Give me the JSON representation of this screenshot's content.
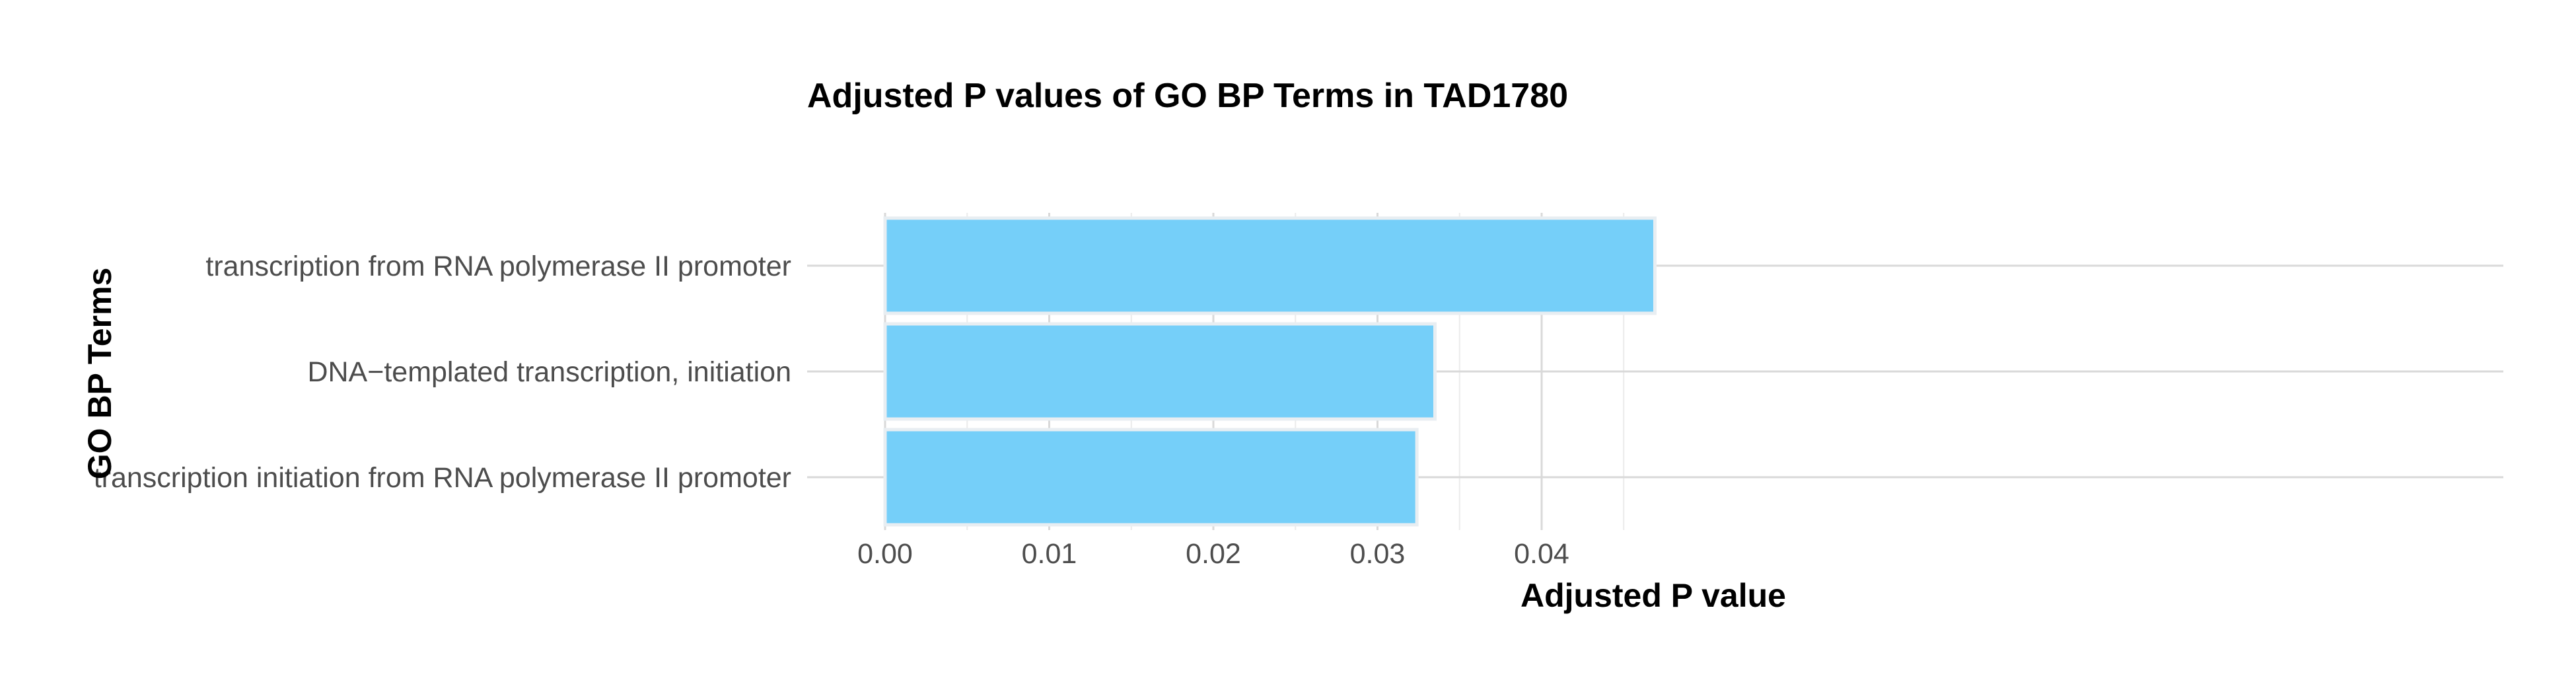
{
  "chart_data": {
    "type": "bar",
    "orientation": "horizontal",
    "title": "Adjusted P values of GO BP Terms in TAD1780",
    "xlabel": "Adjusted P value",
    "ylabel": "GO BP Terms",
    "categories": [
      "transcription from RNA polymerase II promoter",
      "DNA−templated transcription, initiation",
      "transcription initiation from RNA polymerase II promoter"
    ],
    "values": [
      0.0469,
      0.0335,
      0.0324
    ],
    "xlim": [
      0,
      0.049
    ],
    "xticks": [
      0.0,
      0.01,
      0.02,
      0.03,
      0.04
    ],
    "xtick_labels": [
      "0.00",
      "0.01",
      "0.02",
      "0.03",
      "0.04"
    ],
    "grid": true,
    "legend": "none",
    "bar_color": "#75cff9"
  }
}
